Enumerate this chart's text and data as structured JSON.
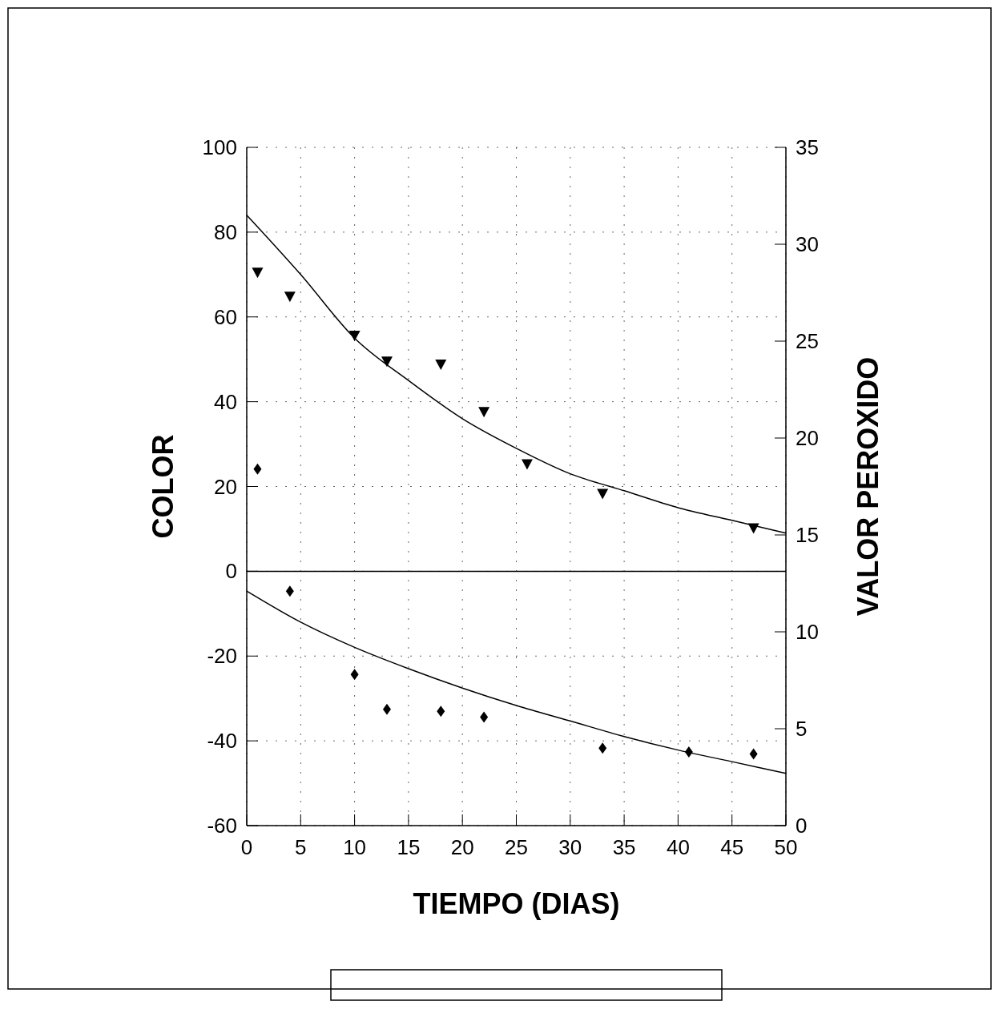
{
  "chart_data": {
    "type": "scatter",
    "xlabel": "TIEMPO (DIAS)",
    "ylabel": "COLOR",
    "y2label": "VALOR PEROXIDO",
    "xlim": [
      0,
      50
    ],
    "xticks": [
      0,
      5,
      10,
      15,
      20,
      25,
      30,
      35,
      40,
      45,
      50
    ],
    "ylim": [
      -60,
      100
    ],
    "yticks": [
      -60,
      -40,
      -20,
      0,
      20,
      40,
      60,
      80,
      100
    ],
    "y2lim": [
      0,
      35
    ],
    "y2ticks": [
      0,
      5,
      10,
      15,
      20,
      25,
      30,
      35
    ],
    "grid": true,
    "ref_lines": [
      {
        "axis": "y",
        "value": 0,
        "line_style": "solid",
        "color": "#000000"
      }
    ],
    "series": [
      {
        "marker": "triangle",
        "color": "#000000",
        "x": [
          1,
          4,
          10,
          13,
          18,
          22,
          26,
          33,
          47
        ],
        "values": [
          70.5,
          64.8,
          55.6,
          49.5,
          48.8,
          37.6,
          25.3,
          18.3,
          10.2
        ]
      },
      {
        "type": "line",
        "color": "#000000",
        "x": [
          0,
          5,
          10,
          15,
          20,
          25,
          30,
          35,
          40,
          45,
          50
        ],
        "values": [
          84,
          70,
          55,
          45,
          36,
          29,
          23,
          19,
          15,
          12,
          9
        ]
      },
      {
        "marker": "diamond",
        "axis": "y2",
        "color": "#000000",
        "x": [
          1,
          4,
          10,
          13,
          18,
          22,
          33,
          41,
          47
        ],
        "values": [
          18.4,
          12.1,
          7.8,
          6.0,
          5.9,
          5.6,
          4.0,
          3.8,
          3.7
        ]
      },
      {
        "type": "line",
        "axis": "y2",
        "color": "#000000",
        "x": [
          0,
          5,
          10,
          15,
          20,
          25,
          30,
          35,
          40,
          45,
          50
        ],
        "values": [
          12.1,
          10.5,
          9.2,
          8.1,
          7.1,
          6.2,
          5.4,
          4.6,
          3.9,
          3.3,
          2.7
        ]
      }
    ]
  }
}
